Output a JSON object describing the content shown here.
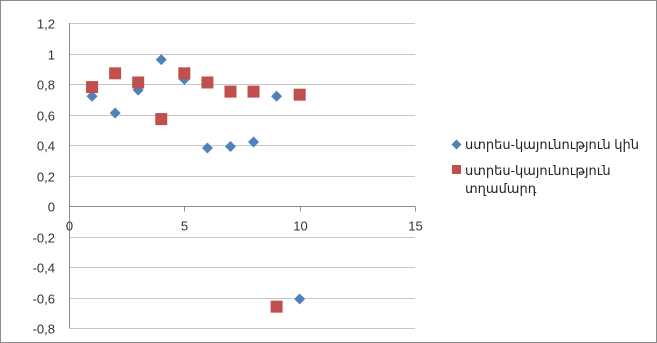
{
  "chart_data": {
    "type": "scatter",
    "title": "",
    "xlabel": "",
    "ylabel": "",
    "xlim": [
      0,
      15
    ],
    "ylim": [
      -0.8,
      1.2
    ],
    "x_ticks": [
      "0",
      "5",
      "10",
      "15"
    ],
    "y_ticks": [
      "1,2",
      "1",
      "0,8",
      "0,6",
      "0,4",
      "0,2",
      "0",
      "-0,2",
      "-0,4",
      "-0,6",
      "-0,8"
    ],
    "grid": "horizontal",
    "legend_position": "right",
    "series": [
      {
        "name": "ստրես-կայունություն կին",
        "marker": "diamond",
        "color": "#4f81bd",
        "points": [
          {
            "x": 1,
            "y": 0.72
          },
          {
            "x": 2,
            "y": 0.61
          },
          {
            "x": 3,
            "y": 0.76
          },
          {
            "x": 4,
            "y": 0.96
          },
          {
            "x": 5,
            "y": 0.83
          },
          {
            "x": 6,
            "y": 0.38
          },
          {
            "x": 7,
            "y": 0.39
          },
          {
            "x": 8,
            "y": 0.42
          },
          {
            "x": 9,
            "y": 0.72
          },
          {
            "x": 10,
            "y": -0.61
          }
        ]
      },
      {
        "name": "ստրես-կայունություն տղամարդ",
        "marker": "square",
        "color": "#c0504d",
        "points": [
          {
            "x": 1,
            "y": 0.78
          },
          {
            "x": 2,
            "y": 0.87
          },
          {
            "x": 3,
            "y": 0.81
          },
          {
            "x": 4,
            "y": 0.57
          },
          {
            "x": 5,
            "y": 0.87
          },
          {
            "x": 6,
            "y": 0.81
          },
          {
            "x": 7,
            "y": 0.75
          },
          {
            "x": 8,
            "y": 0.75
          },
          {
            "x": 9,
            "y": -0.66
          },
          {
            "x": 10,
            "y": 0.73
          }
        ]
      }
    ]
  }
}
